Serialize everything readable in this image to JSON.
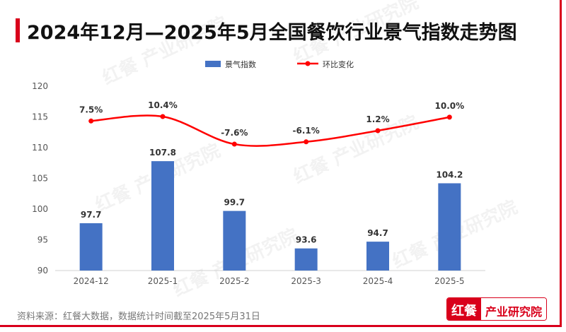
{
  "title": "2024年12月—2025年5月全国餐饮行业景气指数走势图",
  "source": "资料来源：红餐大数据，数据统计时间截至2025年5月31日",
  "logo": {
    "left": "红餐",
    "right": "产业研究院"
  },
  "watermark": "红餐 产业研究院",
  "colors": {
    "bar": "#4472c4",
    "line": "#ff0000",
    "accent": "#d9001b"
  },
  "chart_data": {
    "type": "bar+line",
    "categories": [
      "2024-12",
      "2025-1",
      "2025-2",
      "2025-3",
      "2025-4",
      "2025-5"
    ],
    "ylim": [
      90,
      120
    ],
    "yticks": [
      90,
      95,
      100,
      105,
      110,
      115,
      120
    ],
    "legend_position": "top",
    "grid": false,
    "series": [
      {
        "name": "景气指数",
        "type": "bar",
        "values": [
          97.7,
          107.8,
          99.7,
          93.6,
          94.7,
          104.2
        ],
        "labels": [
          "97.7",
          "107.8",
          "99.7",
          "93.6",
          "94.7",
          "104.2"
        ]
      },
      {
        "name": "环比变化",
        "type": "line",
        "axis": "secondary",
        "values": [
          7.5,
          10.4,
          -7.6,
          -6.1,
          1.2,
          10.0
        ],
        "labels": [
          "7.5%",
          "10.4%",
          "-7.6%",
          "-6.1%",
          "1.2%",
          "10.0%"
        ]
      }
    ]
  }
}
